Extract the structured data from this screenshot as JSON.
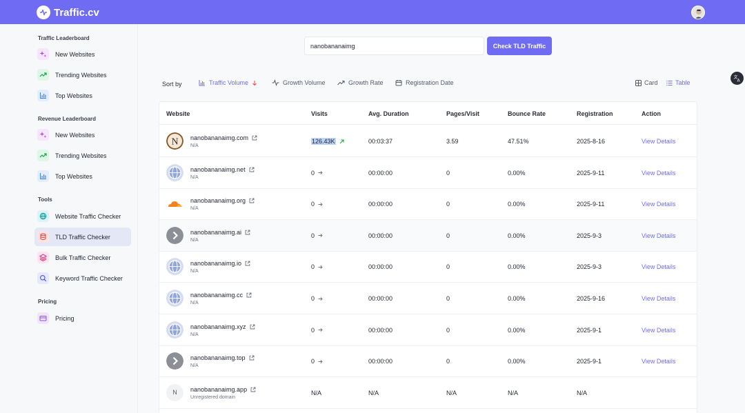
{
  "app": {
    "name": "Traffic.cv"
  },
  "search": {
    "value": "nanobananaimg",
    "button_label": "Check TLD Traffic"
  },
  "sidebar": {
    "sections": [
      {
        "title": "Traffic Leaderboard",
        "items": [
          {
            "label": "New Websites",
            "icon": "sparkle-icon"
          },
          {
            "label": "Trending Websites",
            "icon": "trending-up-icon"
          },
          {
            "label": "Top Websites",
            "icon": "bar-chart-icon"
          }
        ]
      },
      {
        "title": "Revenue Leaderboard",
        "items": [
          {
            "label": "New Websites",
            "icon": "sparkle-icon"
          },
          {
            "label": "Trending Websites",
            "icon": "trending-up-icon"
          },
          {
            "label": "Top Websites",
            "icon": "bar-chart-icon"
          }
        ]
      },
      {
        "title": "Tools",
        "items": [
          {
            "label": "Website Traffic Checker",
            "icon": "globe-icon"
          },
          {
            "label": "TLD Traffic Checker",
            "icon": "database-icon",
            "active": true
          },
          {
            "label": "Bulk Traffic Checker",
            "icon": "layers-icon"
          },
          {
            "label": "Keyword Traffic Checker",
            "icon": "search-icon"
          }
        ]
      },
      {
        "title": "Pricing",
        "items": [
          {
            "label": "Pricing",
            "icon": "credit-card-icon"
          }
        ]
      }
    ]
  },
  "sort": {
    "label": "Sort by",
    "options": [
      "Traffic Volume",
      "Growth Volume",
      "Growth Rate",
      "Registration Date"
    ],
    "active": "Traffic Volume"
  },
  "views": {
    "card": "Card",
    "table": "Table",
    "active": "Table"
  },
  "table": {
    "columns": [
      "Website",
      "Visits",
      "Avg. Duration",
      "Pages/Visit",
      "Bounce Rate",
      "Registration",
      "Action"
    ],
    "rows": [
      {
        "domain": "nanobananaimg.com",
        "sub": "N/A",
        "icon": "n-logo",
        "visits": "126.43K",
        "trend": "up",
        "duration": "00:03:37",
        "pages": "3.59",
        "bounce": "47.51%",
        "registration": "2025-8-16",
        "action": "View Details"
      },
      {
        "domain": "nanobananaimg.net",
        "sub": "N/A",
        "icon": "globe",
        "visits": "0",
        "trend": "flat",
        "duration": "00:00:00",
        "pages": "0",
        "bounce": "0.00%",
        "registration": "2025-9-11",
        "action": "View Details"
      },
      {
        "domain": "nanobananaimg.org",
        "sub": "N/A",
        "icon": "cloudflare",
        "visits": "0",
        "trend": "flat",
        "duration": "00:00:00",
        "pages": "0",
        "bounce": "0.00%",
        "registration": "2025-9-11",
        "action": "View Details"
      },
      {
        "domain": "nanobananaimg.ai",
        "sub": "N/A",
        "icon": "chevron",
        "visits": "0",
        "trend": "flat",
        "duration": "00:00:00",
        "pages": "0",
        "bounce": "0.00%",
        "registration": "2025-9-3",
        "action": "View Details"
      },
      {
        "domain": "nanobananaimg.io",
        "sub": "N/A",
        "icon": "globe",
        "visits": "0",
        "trend": "flat",
        "duration": "00:00:00",
        "pages": "0",
        "bounce": "0.00%",
        "registration": "2025-9-3",
        "action": "View Details"
      },
      {
        "domain": "nanobananaimg.cc",
        "sub": "N/A",
        "icon": "globe",
        "visits": "0",
        "trend": "flat",
        "duration": "00:00:00",
        "pages": "0",
        "bounce": "0.00%",
        "registration": "2025-9-16",
        "action": "View Details"
      },
      {
        "domain": "nanobananaimg.xyz",
        "sub": "N/A",
        "icon": "globe",
        "visits": "0",
        "trend": "flat",
        "duration": "00:00:00",
        "pages": "0",
        "bounce": "0.00%",
        "registration": "2025-9-1",
        "action": "View Details"
      },
      {
        "domain": "nanobananaimg.top",
        "sub": "N/A",
        "icon": "chevron",
        "visits": "0",
        "trend": "flat",
        "duration": "00:00:00",
        "pages": "0",
        "bounce": "0.00%",
        "registration": "2025-9-1",
        "action": "View Details"
      },
      {
        "domain": "nanobananaimg.app",
        "sub": "Unregistered domain",
        "icon": "letter-n",
        "icon_letter": "N",
        "visits": "N/A",
        "trend": "none",
        "duration": "N/A",
        "pages": "N/A",
        "bounce": "N/A",
        "registration": "N/A",
        "action": ""
      }
    ]
  },
  "colors": {
    "accent": "#6f6cf3",
    "up": "#16a34a"
  }
}
